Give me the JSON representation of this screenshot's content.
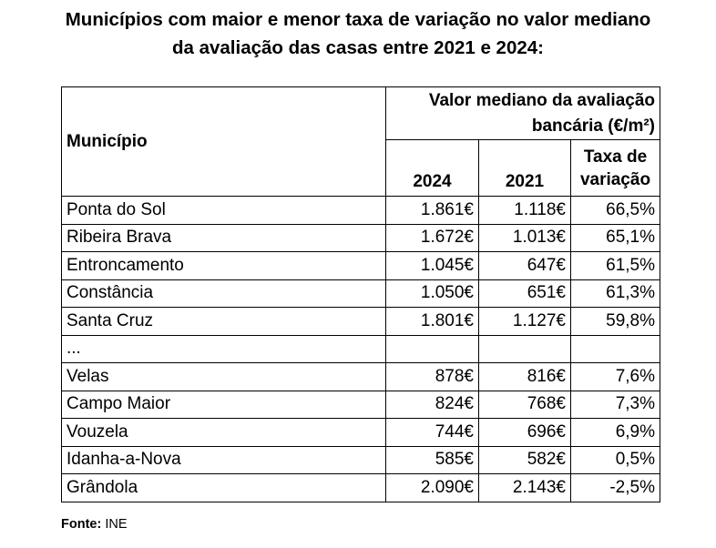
{
  "title": {
    "line1": "Municípios com maior e menor taxa de variação no valor mediano",
    "line2": "da avaliação das casas entre 2021 e 2024:"
  },
  "table": {
    "header_municipio": "Município",
    "header_group_line1": "Valor mediano da avaliação",
    "header_group_line2": "bancária (€/m²)",
    "header_2024": "2024",
    "header_2021": "2021",
    "header_rate_line1": "Taxa de",
    "header_rate_line2": "variação",
    "rows": [
      {
        "name": "Ponta do Sol",
        "v2024": "1.861€",
        "v2021": "1.118€",
        "rate": "66,5%"
      },
      {
        "name": "Ribeira Brava",
        "v2024": "1.672€",
        "v2021": "1.013€",
        "rate": "65,1%"
      },
      {
        "name": "Entroncamento",
        "v2024": "1.045€",
        "v2021": "647€",
        "rate": "61,5%"
      },
      {
        "name": "Constância",
        "v2024": "1.050€",
        "v2021": "651€",
        "rate": "61,3%"
      },
      {
        "name": "Santa Cruz",
        "v2024": "1.801€",
        "v2021": "1.127€",
        "rate": "59,8%"
      },
      {
        "name": "...",
        "v2024": "",
        "v2021": "",
        "rate": ""
      },
      {
        "name": "Velas",
        "v2024": "878€",
        "v2021": "816€",
        "rate": "7,6%"
      },
      {
        "name": "Campo Maior",
        "v2024": "824€",
        "v2021": "768€",
        "rate": "7,3%"
      },
      {
        "name": "Vouzela",
        "v2024": "744€",
        "v2021": "696€",
        "rate": "6,9%"
      },
      {
        "name": "Idanha-a-Nova",
        "v2024": "585€",
        "v2021": "582€",
        "rate": "0,5%"
      },
      {
        "name": "Grândola",
        "v2024": "2.090€",
        "v2021": "2.143€",
        "rate": "-2,5%"
      }
    ]
  },
  "source": {
    "label": "Fonte:",
    "value": "INE"
  }
}
